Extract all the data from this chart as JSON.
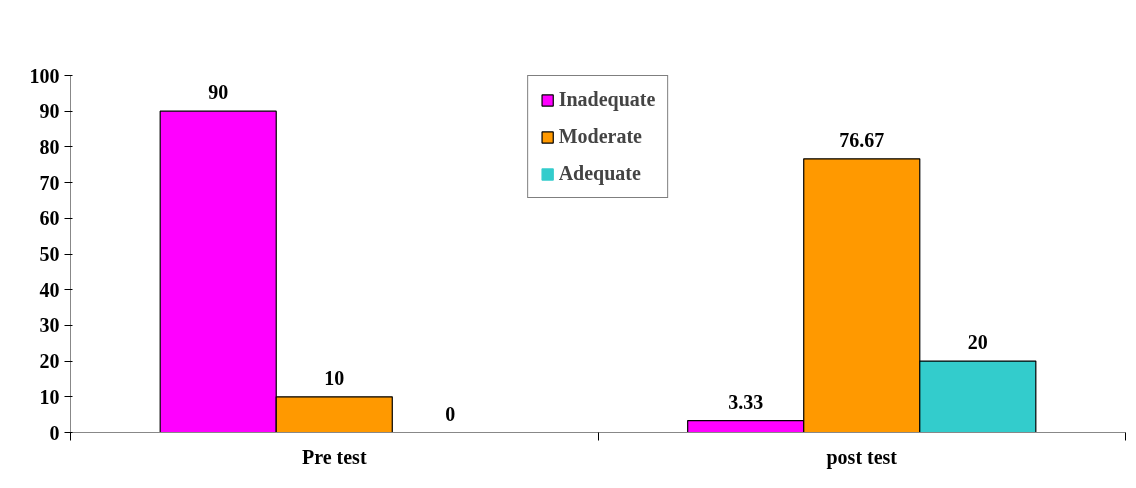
{
  "chart_data": {
    "type": "bar",
    "categories": [
      "Pre test",
      "post test"
    ],
    "series": [
      {
        "name": "Inadequate",
        "color": "#ff00ff",
        "values": [
          90,
          3.33
        ]
      },
      {
        "name": "Moderate",
        "color": "#ff9900",
        "values": [
          10,
          76.67
        ]
      },
      {
        "name": "Adequate",
        "color": "#33cccc",
        "values": [
          0,
          20
        ]
      }
    ],
    "ylim": [
      0,
      100
    ],
    "yticks": [
      0,
      10,
      20,
      30,
      40,
      50,
      60,
      70,
      80,
      90,
      100
    ],
    "grid": false,
    "legend": "top",
    "data_labels": true
  }
}
